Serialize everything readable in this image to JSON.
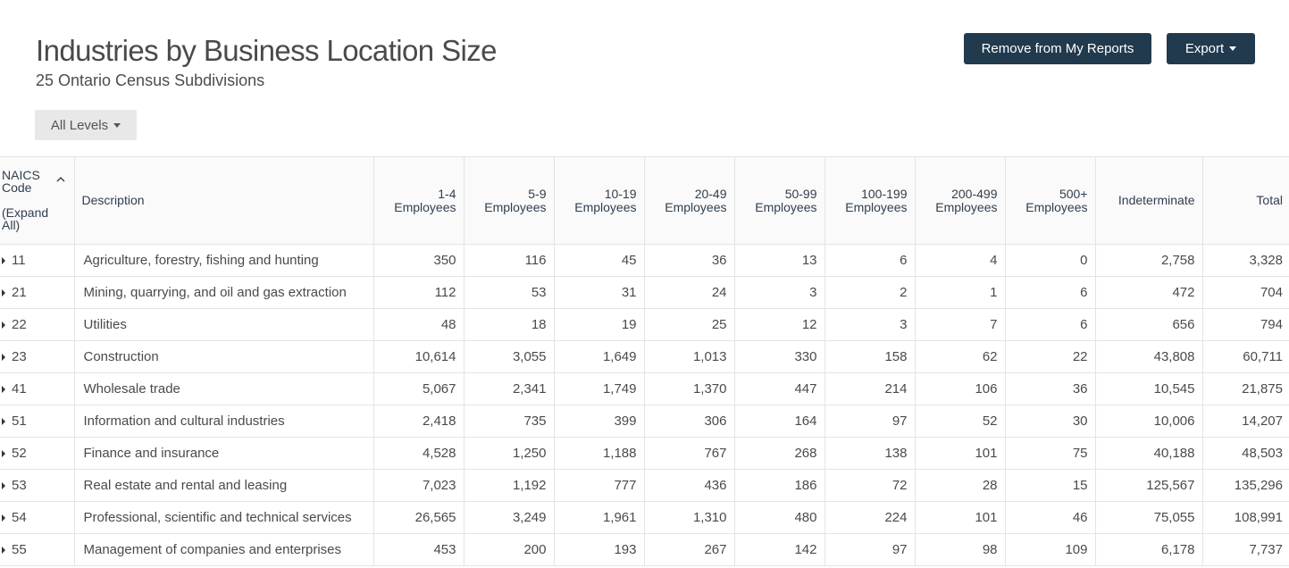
{
  "header": {
    "title": "Industries by Business Location Size",
    "subtitle": "25 Ontario Census Subdivisions"
  },
  "actions": {
    "remove_label": "Remove from My Reports",
    "export_label": "Export",
    "levels_label": "All Levels"
  },
  "table": {
    "code_header": "NAICS Code",
    "expand_all_label": "(Expand All)",
    "description_header": "Description",
    "columns": [
      [
        "1-4",
        "Employees"
      ],
      [
        "5-9",
        "Employees"
      ],
      [
        "10-19",
        "Employees"
      ],
      [
        "20-49",
        "Employees"
      ],
      [
        "50-99",
        "Employees"
      ],
      [
        "100-199",
        "Employees"
      ],
      [
        "200-499",
        "Employees"
      ],
      [
        "500+",
        "Employees"
      ],
      [
        "Indeterminate"
      ],
      [
        "Total"
      ]
    ],
    "rows": [
      {
        "code": "11",
        "desc": "Agriculture, forestry, fishing and hunting",
        "values": [
          "350",
          "116",
          "45",
          "36",
          "13",
          "6",
          "4",
          "0",
          "2,758",
          "3,328"
        ]
      },
      {
        "code": "21",
        "desc": "Mining, quarrying, and oil and gas extraction",
        "values": [
          "112",
          "53",
          "31",
          "24",
          "3",
          "2",
          "1",
          "6",
          "472",
          "704"
        ]
      },
      {
        "code": "22",
        "desc": "Utilities",
        "values": [
          "48",
          "18",
          "19",
          "25",
          "12",
          "3",
          "7",
          "6",
          "656",
          "794"
        ]
      },
      {
        "code": "23",
        "desc": "Construction",
        "values": [
          "10,614",
          "3,055",
          "1,649",
          "1,013",
          "330",
          "158",
          "62",
          "22",
          "43,808",
          "60,711"
        ]
      },
      {
        "code": "41",
        "desc": "Wholesale trade",
        "values": [
          "5,067",
          "2,341",
          "1,749",
          "1,370",
          "447",
          "214",
          "106",
          "36",
          "10,545",
          "21,875"
        ]
      },
      {
        "code": "51",
        "desc": "Information and cultural industries",
        "values": [
          "2,418",
          "735",
          "399",
          "306",
          "164",
          "97",
          "52",
          "30",
          "10,006",
          "14,207"
        ]
      },
      {
        "code": "52",
        "desc": "Finance and insurance",
        "values": [
          "4,528",
          "1,250",
          "1,188",
          "767",
          "268",
          "138",
          "101",
          "75",
          "40,188",
          "48,503"
        ]
      },
      {
        "code": "53",
        "desc": "Real estate and rental and leasing",
        "values": [
          "7,023",
          "1,192",
          "777",
          "436",
          "186",
          "72",
          "28",
          "15",
          "125,567",
          "135,296"
        ]
      },
      {
        "code": "54",
        "desc": "Professional, scientific and technical services",
        "values": [
          "26,565",
          "3,249",
          "1,961",
          "1,310",
          "480",
          "224",
          "101",
          "46",
          "75,055",
          "108,991"
        ]
      },
      {
        "code": "55",
        "desc": "Management of companies and enterprises",
        "values": [
          "453",
          "200",
          "193",
          "267",
          "142",
          "97",
          "98",
          "109",
          "6,178",
          "7,737"
        ]
      }
    ]
  },
  "colors": {
    "button_dark": "#213a4e",
    "button_light": "#e8e8e8",
    "header_text": "#2f3e4e",
    "grid_line": "#e4e4e4"
  },
  "icons": {
    "sort": "chevron-up-icon",
    "row_expand": "caret-right-icon",
    "dropdown": "caret-down-icon"
  }
}
